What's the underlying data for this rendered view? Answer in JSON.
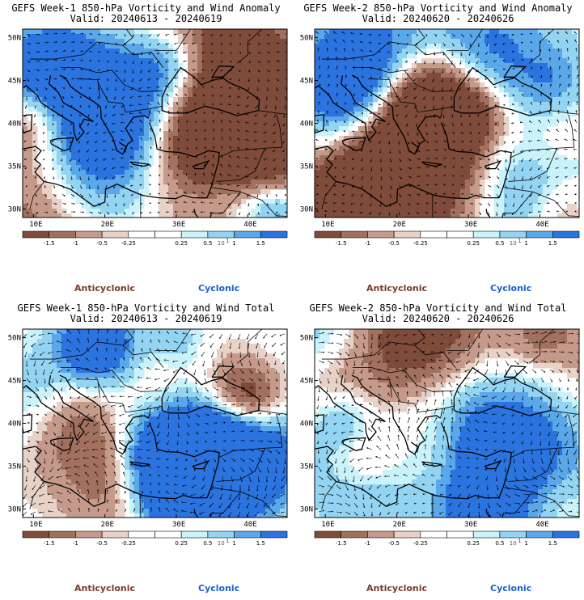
{
  "colors": {
    "scale": [
      "#7f4b3a",
      "#a1705f",
      "#c59a8a",
      "#e8d2c8",
      "#ffffff",
      "#ffffff",
      "#c9f2fa",
      "#93d4f2",
      "#5aa7ea",
      "#2b73df"
    ],
    "coast": "#000000",
    "anticyclonic": "#7a3b2a",
    "cyclonic": "#1a5fd0"
  },
  "colorbar": {
    "ticks": [
      "-1.5",
      "-1",
      "-0.5",
      "-0.25",
      "0.25",
      "0.5",
      "1",
      "1.5"
    ],
    "multiplier": "10",
    "exponent": "1"
  },
  "axes": {
    "x_labels": [
      "10E",
      "20E",
      "30E",
      "40E"
    ],
    "y_labels": [
      "50N",
      "45N",
      "40N",
      "35N",
      "30N"
    ]
  },
  "legend": {
    "anticyclonic": "Anticyclonic",
    "cyclonic": "Cyclonic"
  },
  "panels": [
    {
      "id": "p1",
      "title": "GEFS Week-1 850-hPa Vorticity and Wind Anomaly",
      "valid": "Valid: 20240613 - 20240619",
      "field": "anomaly",
      "seed": 3
    },
    {
      "id": "p2",
      "title": "GEFS Week-2 850-hPa Vorticity and Wind Anomaly",
      "valid": "Valid: 20240620 - 20240626",
      "field": "anomaly",
      "seed": 7
    },
    {
      "id": "p3",
      "title": "GEFS Week-1 850-hPa Vorticity and Wind Total",
      "valid": "Valid: 20240613 - 20240619",
      "field": "total",
      "seed": 11
    },
    {
      "id": "p4",
      "title": "GEFS Week-2 850-hPa Vorticity and Wind Total",
      "valid": "Valid: 20240620 - 20240626",
      "field": "total",
      "seed": 17
    }
  ]
}
